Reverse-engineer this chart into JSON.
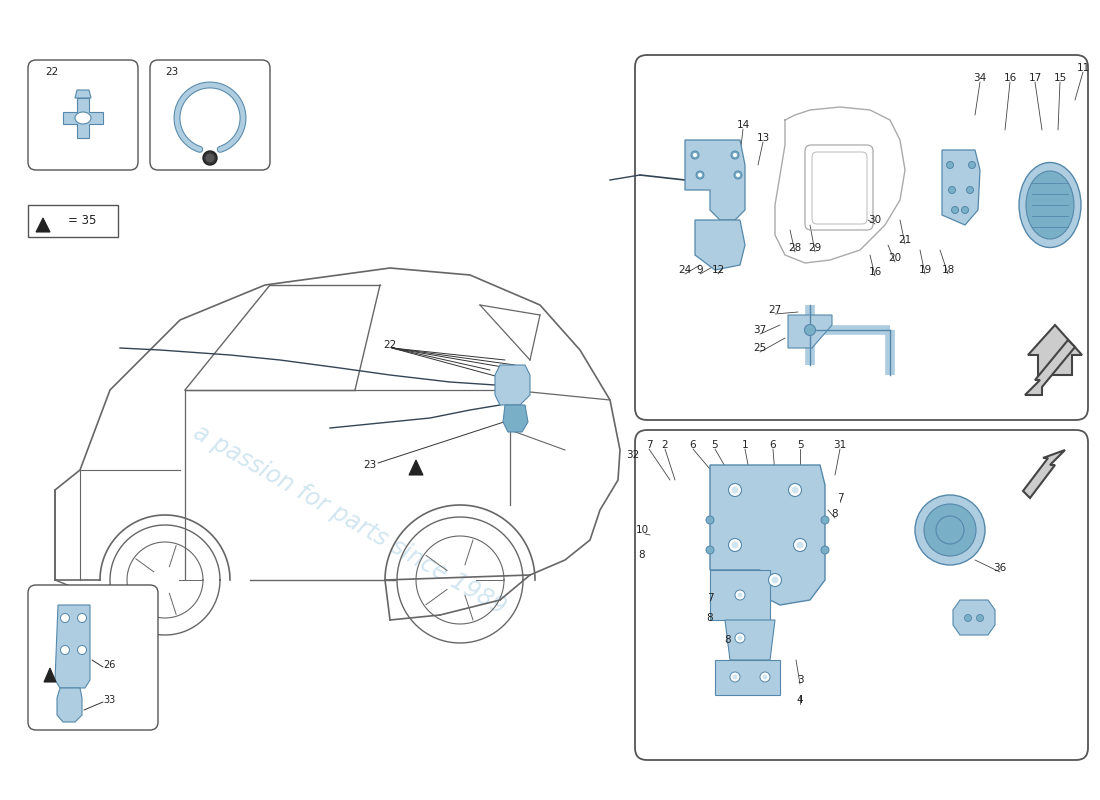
{
  "bg": "#ffffff",
  "lb": "#aecde0",
  "mb": "#7aafc8",
  "db": "#5588aa",
  "car_c": "#666666",
  "txt_c": "#222222",
  "box_ec": "#555555",
  "wm_c": "#cde4f0",
  "arrow_fill": "#cccccc",
  "arrow_ec": "#444444",
  "watermark": "a passion for parts since 1989"
}
